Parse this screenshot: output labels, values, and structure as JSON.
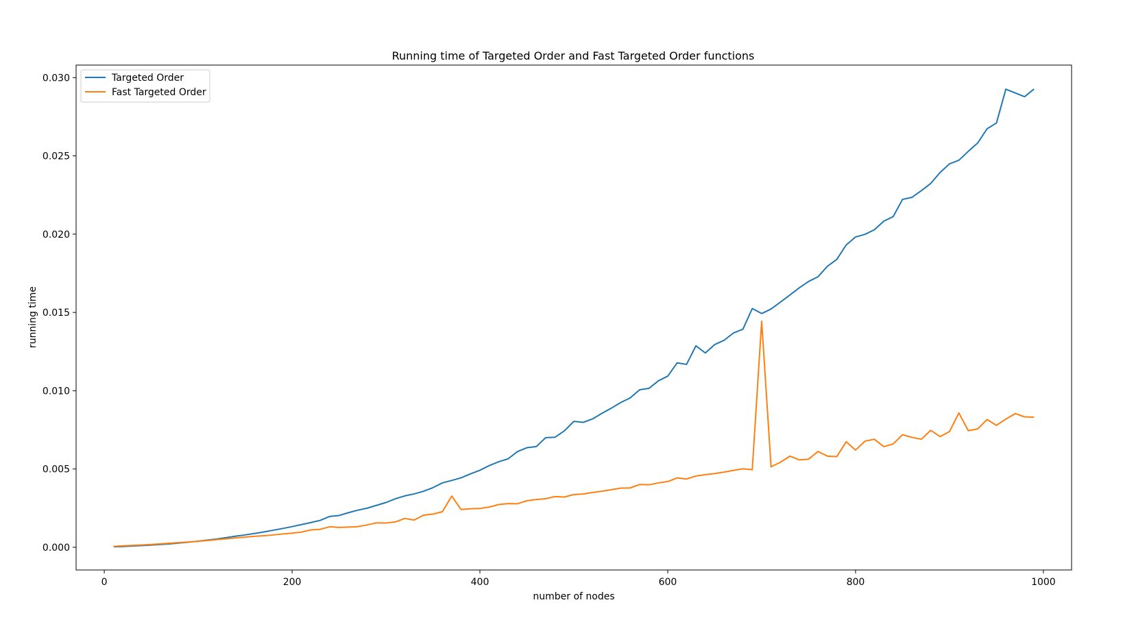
{
  "chart_data": {
    "type": "line",
    "title": "Running time of Targeted Order and Fast Targeted Order functions",
    "xlabel": "number of nodes",
    "ylabel": "running time",
    "xlim": [
      -30,
      1030
    ],
    "ylim": [
      -0.00145,
      0.0308
    ],
    "xticks": [
      0,
      200,
      400,
      600,
      800,
      1000
    ],
    "xtick_labels": [
      "0",
      "200",
      "400",
      "600",
      "800",
      "1000"
    ],
    "yticks": [
      0.0,
      0.005,
      0.01,
      0.015,
      0.02,
      0.025,
      0.03
    ],
    "ytick_labels": [
      "0.000",
      "0.005",
      "0.010",
      "0.015",
      "0.020",
      "0.025",
      "0.030"
    ],
    "grid": false,
    "legend_position": "upper-left",
    "x": [
      10,
      20,
      30,
      40,
      50,
      60,
      70,
      80,
      90,
      100,
      110,
      120,
      130,
      140,
      150,
      160,
      170,
      180,
      190,
      200,
      210,
      220,
      230,
      240,
      250,
      260,
      270,
      280,
      290,
      300,
      310,
      320,
      330,
      340,
      350,
      360,
      370,
      380,
      390,
      400,
      410,
      420,
      430,
      440,
      450,
      460,
      470,
      480,
      490,
      500,
      510,
      520,
      530,
      540,
      550,
      560,
      570,
      580,
      590,
      600,
      610,
      620,
      630,
      640,
      650,
      660,
      670,
      680,
      690,
      700,
      710,
      720,
      730,
      740,
      750,
      760,
      770,
      780,
      790,
      800,
      810,
      820,
      830,
      840,
      850,
      860,
      870,
      880,
      890,
      900,
      910,
      920,
      930,
      940,
      950,
      960,
      970,
      980,
      990
    ],
    "series": [
      {
        "name": "Targeted Order",
        "color": "#1f77b4",
        "values": [
          3e-05,
          5e-05,
          8e-05,
          0.00011,
          0.00014,
          0.00018,
          0.00022,
          0.00027,
          0.00033,
          0.00039,
          0.00046,
          0.00053,
          0.00062,
          0.00071,
          0.00079,
          0.00088,
          0.00098,
          0.00109,
          0.0012,
          0.00132,
          0.00145,
          0.00158,
          0.00172,
          0.00197,
          0.00203,
          0.00221,
          0.00237,
          0.0025,
          0.00268,
          0.00286,
          0.0031,
          0.00328,
          0.00341,
          0.00358,
          0.00381,
          0.00411,
          0.00427,
          0.00444,
          0.00469,
          0.00492,
          0.00522,
          0.00546,
          0.00565,
          0.00611,
          0.00636,
          0.00643,
          0.007,
          0.00703,
          0.00744,
          0.00804,
          0.00798,
          0.0082,
          0.00856,
          0.00889,
          0.00925,
          0.00954,
          0.01006,
          0.01015,
          0.01063,
          0.01093,
          0.01178,
          0.01168,
          0.01287,
          0.01241,
          0.01295,
          0.01322,
          0.01369,
          0.01393,
          0.01525,
          0.01493,
          0.01522,
          0.01566,
          0.01611,
          0.01657,
          0.01698,
          0.01728,
          0.01795,
          0.01839,
          0.01931,
          0.01982,
          0.01999,
          0.02028,
          0.02083,
          0.02112,
          0.02222,
          0.02235,
          0.02278,
          0.02324,
          0.02394,
          0.02449,
          0.02472,
          0.02529,
          0.02582,
          0.02673,
          0.0271,
          0.02926,
          0.02902,
          0.02878,
          0.02927
        ]
      },
      {
        "name": "Fast Targeted Order",
        "color": "#ff7f0e",
        "values": [
          6e-05,
          9e-05,
          0.00012,
          0.00015,
          0.00018,
          0.00022,
          0.00026,
          0.0003,
          0.00034,
          0.00038,
          0.00043,
          0.00049,
          0.00054,
          0.0006,
          0.00065,
          0.0007,
          0.00074,
          0.00079,
          0.00085,
          0.0009,
          0.00097,
          0.00111,
          0.00115,
          0.00131,
          0.00127,
          0.00129,
          0.00132,
          0.00143,
          0.00156,
          0.00155,
          0.00162,
          0.00184,
          0.00174,
          0.00205,
          0.00212,
          0.00227,
          0.00327,
          0.00241,
          0.00246,
          0.00248,
          0.00257,
          0.00273,
          0.00279,
          0.00278,
          0.00297,
          0.00305,
          0.0031,
          0.00324,
          0.00321,
          0.00337,
          0.0034,
          0.0035,
          0.00358,
          0.00368,
          0.00378,
          0.00379,
          0.00401,
          0.00399,
          0.00411,
          0.0042,
          0.00443,
          0.00436,
          0.00455,
          0.00464,
          0.00471,
          0.0048,
          0.00491,
          0.00501,
          0.00496,
          0.01444,
          0.00514,
          0.00543,
          0.00582,
          0.00558,
          0.00563,
          0.00612,
          0.00582,
          0.00579,
          0.00674,
          0.00621,
          0.00678,
          0.0069,
          0.00643,
          0.0066,
          0.00719,
          0.00702,
          0.0069,
          0.00747,
          0.00707,
          0.00739,
          0.00858,
          0.00745,
          0.00756,
          0.00816,
          0.00779,
          0.00819,
          0.00854,
          0.00833,
          0.00831
        ]
      }
    ]
  }
}
